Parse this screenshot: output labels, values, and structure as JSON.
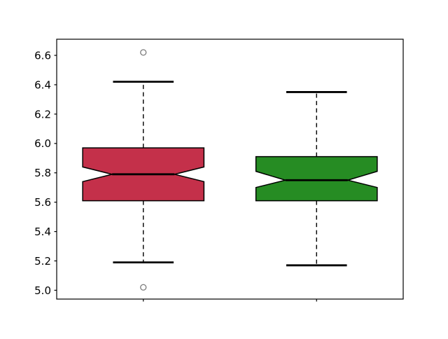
{
  "figure": {
    "background": "#ffffff",
    "axes_background": "#ffffff",
    "spine_color": "#000000"
  },
  "chart_data": {
    "type": "boxplot",
    "title": "",
    "xlabel": "",
    "ylabel": "",
    "notched": true,
    "orientation": "vertical",
    "grid": false,
    "xlim": [
      0.5,
      2.5
    ],
    "ylim": [
      4.94,
      6.71
    ],
    "yticks": [
      5.0,
      5.2,
      5.4,
      5.6,
      5.8,
      6.0,
      6.2,
      6.4,
      6.6
    ],
    "ytick_labels": [
      "5.0",
      "5.2",
      "5.4",
      "5.6",
      "5.8",
      "6.0",
      "6.2",
      "6.4",
      "6.6"
    ],
    "xticks": [
      1,
      2
    ],
    "xtick_labels": [
      "",
      ""
    ],
    "box_width": 0.7,
    "cap_width": 0.35,
    "notch_inner_width": 0.36,
    "boxes": [
      {
        "name": "box-1",
        "position": 1,
        "q1": 5.61,
        "median": 5.79,
        "q3": 5.97,
        "notch_low": 5.74,
        "notch_high": 5.84,
        "whisker_low": 5.19,
        "whisker_high": 6.42,
        "fliers": [
          6.62,
          5.02
        ],
        "fill_color": "#c4304a"
      },
      {
        "name": "box-2",
        "position": 2,
        "q1": 5.61,
        "median": 5.75,
        "q3": 5.91,
        "notch_low": 5.7,
        "notch_high": 5.81,
        "whisker_low": 5.17,
        "whisker_high": 6.35,
        "fliers": [],
        "fill_color": "#268c23"
      }
    ],
    "styles": {
      "edge_color": "#000000",
      "median_color": "#000000",
      "whisker_color": "#000000",
      "whisker_dash": "6,4.5",
      "cap_color": "#000000",
      "flier_edge_color": "#7a7a7a",
      "tick_label_color": "#000000",
      "tick_label_size": 15
    }
  }
}
